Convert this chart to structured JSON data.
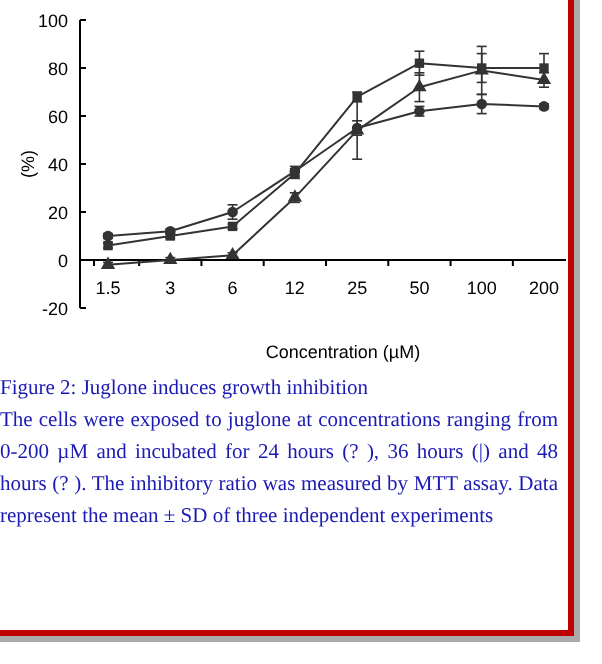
{
  "chart_data": {
    "type": "line",
    "title": "Figure 2: Juglone induces growth inhibition",
    "annotations": [
      "The cells were exposed to juglone at concentrations ranging from 0-200 µM and incubated for 24 hours (? ), 36 hours (|) and 48 hours (? ). The inhibitory ratio was measured by MTT assay. Data represent the mean ± SD of three independent experiments"
    ],
    "xlabel": "Concentration (µM)",
    "ylabel": "(%)",
    "categories": [
      "1.5",
      "3",
      "6",
      "12",
      "25",
      "50",
      "100",
      "200"
    ],
    "ylim": [
      -20,
      100
    ],
    "yticks": [
      -20,
      0,
      20,
      40,
      60,
      80,
      100
    ],
    "grid": false,
    "series": [
      {
        "color": "#333333",
        "marker": "circle",
        "values": [
          10,
          12,
          20,
          37,
          55,
          62,
          65,
          64
        ],
        "errors": [
          1,
          1,
          3,
          2,
          3,
          2,
          4,
          1
        ]
      },
      {
        "color": "#333333",
        "marker": "square",
        "values": [
          6,
          10,
          14,
          36,
          68,
          82,
          80,
          80
        ],
        "errors": [
          1,
          1,
          1,
          2,
          2,
          5,
          6,
          6
        ]
      },
      {
        "color": "#333333",
        "marker": "triangle",
        "values": [
          -2,
          0,
          2,
          26,
          54,
          72,
          79,
          75
        ],
        "errors": [
          1,
          1,
          1,
          2,
          12,
          6,
          10,
          3
        ]
      }
    ]
  }
}
